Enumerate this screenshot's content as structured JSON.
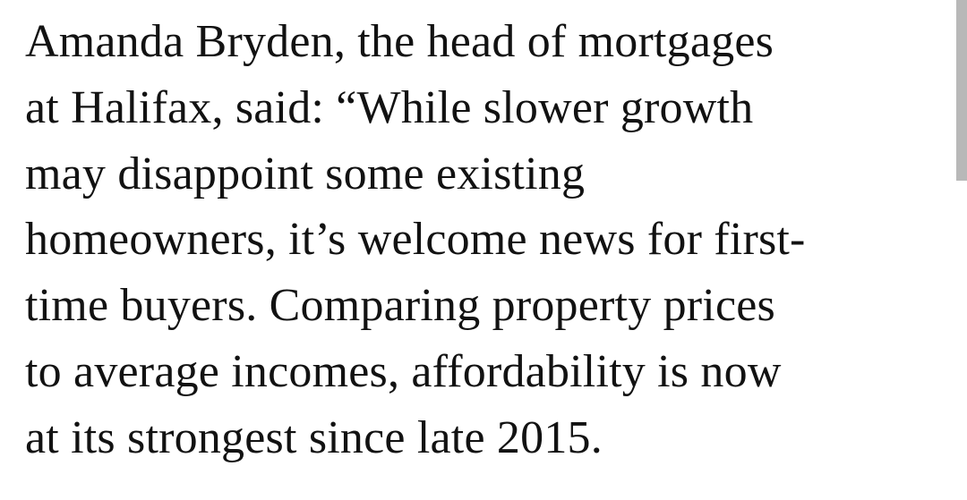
{
  "paragraph": {
    "lines": [
      "Amanda Bryden, the head of mortgages",
      "at Halifax, said: “While slower growth",
      "may disappoint some existing",
      "homeowners, it’s welcome news for first-",
      "time buyers. Comparing property prices",
      "to average incomes, affordability is now",
      "at its strongest since late 2015."
    ]
  }
}
